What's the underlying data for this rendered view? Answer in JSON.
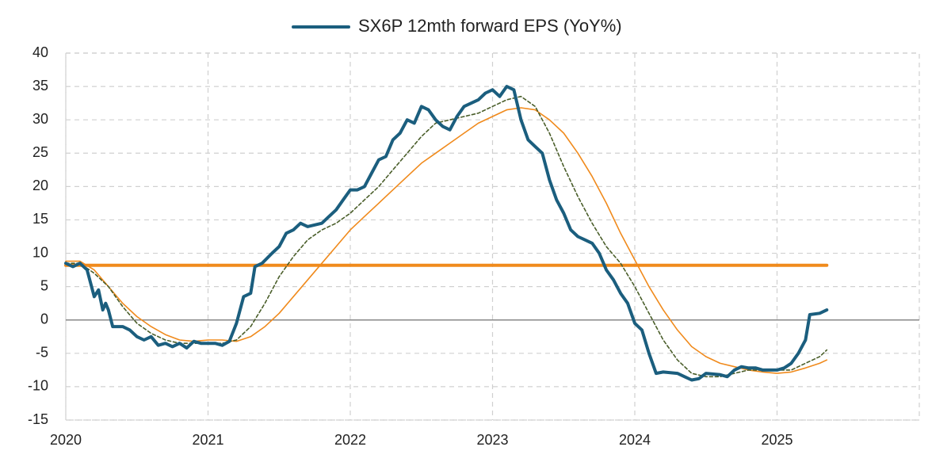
{
  "chart_data": {
    "type": "line",
    "xlim": [
      2020,
      2026
    ],
    "xticks": [
      2020,
      2021,
      2022,
      2023,
      2024,
      2025
    ],
    "ylim": [
      -15,
      40
    ],
    "yticks": [
      40,
      35,
      30,
      25,
      20,
      15,
      10,
      5,
      0,
      -5,
      -10,
      -15
    ],
    "grid": true,
    "legend": "top",
    "series": [
      {
        "name": "SX6P 12mth forward EPS (YoY%)",
        "color": "#1b5e7e",
        "width": 4,
        "style": "solid",
        "x": [
          2020.0,
          2020.05,
          2020.1,
          2020.15,
          2020.2,
          2020.23,
          2020.26,
          2020.28,
          2020.3,
          2020.33,
          2020.4,
          2020.45,
          2020.5,
          2020.55,
          2020.6,
          2020.65,
          2020.7,
          2020.75,
          2020.8,
          2020.85,
          2020.9,
          2020.95,
          2021.0,
          2021.05,
          2021.1,
          2021.15,
          2021.2,
          2021.25,
          2021.3,
          2021.33,
          2021.38,
          2021.45,
          2021.5,
          2021.55,
          2021.6,
          2021.65,
          2021.7,
          2021.8,
          2021.85,
          2021.9,
          2021.95,
          2022.0,
          2022.05,
          2022.1,
          2022.15,
          2022.2,
          2022.25,
          2022.3,
          2022.35,
          2022.4,
          2022.45,
          2022.5,
          2022.55,
          2022.6,
          2022.65,
          2022.7,
          2022.75,
          2022.8,
          2022.9,
          2022.95,
          2023.0,
          2023.05,
          2023.1,
          2023.15,
          2023.2,
          2023.25,
          2023.3,
          2023.35,
          2023.4,
          2023.45,
          2023.5,
          2023.55,
          2023.6,
          2023.65,
          2023.7,
          2023.75,
          2023.8,
          2023.85,
          2023.9,
          2023.95,
          2024.0,
          2024.05,
          2024.1,
          2024.15,
          2024.2,
          2024.3,
          2024.35,
          2024.4,
          2024.45,
          2024.5,
          2024.6,
          2024.65,
          2024.7,
          2024.75,
          2024.8,
          2024.85,
          2024.9,
          2025.0,
          2025.05,
          2025.1,
          2025.15,
          2025.2,
          2025.23,
          2025.3,
          2025.35
        ],
        "values": [
          8.5,
          8,
          8.5,
          7.5,
          3.5,
          4.5,
          1.5,
          2.5,
          1.5,
          -1,
          -1,
          -1.5,
          -2.5,
          -3,
          -2.5,
          -3.8,
          -3.5,
          -4,
          -3.5,
          -4.2,
          -3.2,
          -3.5,
          -3.5,
          -3.5,
          -3.8,
          -3.2,
          -0.5,
          3.5,
          4,
          8,
          8.5,
          10,
          11,
          13,
          13.5,
          14.5,
          14,
          14.5,
          15.5,
          16.5,
          18,
          19.5,
          19.5,
          20,
          22,
          24,
          24.5,
          27,
          28,
          30,
          29.5,
          32,
          31.5,
          30,
          29,
          28.5,
          30.5,
          32,
          33,
          34,
          34.5,
          33.5,
          35,
          34.5,
          30,
          27,
          26,
          25,
          21,
          18,
          16,
          13.5,
          12.5,
          12,
          11.5,
          10,
          7.5,
          6,
          4,
          2.5,
          -0.5,
          -1.5,
          -5,
          -8,
          -7.8,
          -8,
          -8.5,
          -9,
          -8.8,
          -8,
          -8.2,
          -8.5,
          -7.5,
          -7,
          -7.2,
          -7.2,
          -7.5,
          -7.5,
          -7.2,
          -6.5,
          -5,
          -3,
          0.8,
          1,
          1.5
        ]
      },
      {
        "color": "#4a5e2a",
        "width": 1.6,
        "style": "dashed",
        "x": [
          2020.0,
          2020.1,
          2020.2,
          2020.3,
          2020.4,
          2020.5,
          2020.6,
          2020.7,
          2020.8,
          2020.9,
          2021.0,
          2021.1,
          2021.2,
          2021.3,
          2021.4,
          2021.5,
          2021.6,
          2021.7,
          2021.8,
          2021.9,
          2022.0,
          2022.1,
          2022.2,
          2022.3,
          2022.4,
          2022.5,
          2022.6,
          2022.7,
          2022.8,
          2022.9,
          2023.0,
          2023.1,
          2023.2,
          2023.3,
          2023.4,
          2023.5,
          2023.6,
          2023.7,
          2023.8,
          2023.9,
          2024.0,
          2024.1,
          2024.2,
          2024.3,
          2024.4,
          2024.5,
          2024.6,
          2024.7,
          2024.8,
          2024.9,
          2025.0,
          2025.1,
          2025.2,
          2025.3,
          2025.35
        ],
        "values": [
          8.5,
          8.5,
          7,
          5,
          2,
          -0.5,
          -2,
          -3,
          -3.5,
          -3.5,
          -3.5,
          -3.5,
          -3,
          -1,
          2.5,
          6.5,
          9.5,
          12,
          13.5,
          14.5,
          16,
          18,
          20,
          22.5,
          25,
          27.5,
          29.5,
          30,
          30.5,
          31,
          32,
          33,
          33.5,
          32,
          28,
          23,
          18.5,
          14.5,
          11,
          8.5,
          5,
          1,
          -3,
          -6,
          -8,
          -8.5,
          -8.5,
          -8,
          -7.5,
          -7.5,
          -7.5,
          -7.5,
          -6.5,
          -5.5,
          -4.5
        ]
      },
      {
        "color": "#f08a1c",
        "width": 1.6,
        "style": "solid",
        "x": [
          2020.0,
          2020.1,
          2020.2,
          2020.3,
          2020.4,
          2020.5,
          2020.6,
          2020.7,
          2020.8,
          2020.9,
          2021.0,
          2021.1,
          2021.2,
          2021.3,
          2021.4,
          2021.5,
          2021.6,
          2021.7,
          2021.8,
          2021.9,
          2022.0,
          2022.1,
          2022.2,
          2022.3,
          2022.4,
          2022.5,
          2022.6,
          2022.7,
          2022.8,
          2022.9,
          2023.0,
          2023.1,
          2023.2,
          2023.3,
          2023.4,
          2023.5,
          2023.6,
          2023.7,
          2023.8,
          2023.9,
          2024.0,
          2024.1,
          2024.2,
          2024.3,
          2024.4,
          2024.5,
          2024.6,
          2024.7,
          2024.8,
          2024.9,
          2025.0,
          2025.1,
          2025.2,
          2025.3,
          2025.35
        ],
        "values": [
          8.8,
          8.8,
          7.5,
          5,
          2.5,
          0.5,
          -1,
          -2.2,
          -3,
          -3.2,
          -3,
          -3,
          -3.2,
          -2.5,
          -1,
          1,
          3.5,
          6,
          8.5,
          11,
          13.5,
          15.5,
          17.5,
          19.5,
          21.5,
          23.5,
          25,
          26.5,
          28,
          29.5,
          30.5,
          31.5,
          31.8,
          31.5,
          30,
          28,
          25,
          21.5,
          17.5,
          13,
          9,
          5,
          1.5,
          -1.5,
          -4,
          -5.5,
          -6.5,
          -7,
          -7.5,
          -7.8,
          -8,
          -7.8,
          -7.2,
          -6.5,
          -6
        ]
      },
      {
        "color": "#f08a1c",
        "width": 4,
        "style": "solid",
        "x": [
          2020.0,
          2025.35
        ],
        "values": [
          8.2,
          8.2
        ]
      }
    ]
  }
}
